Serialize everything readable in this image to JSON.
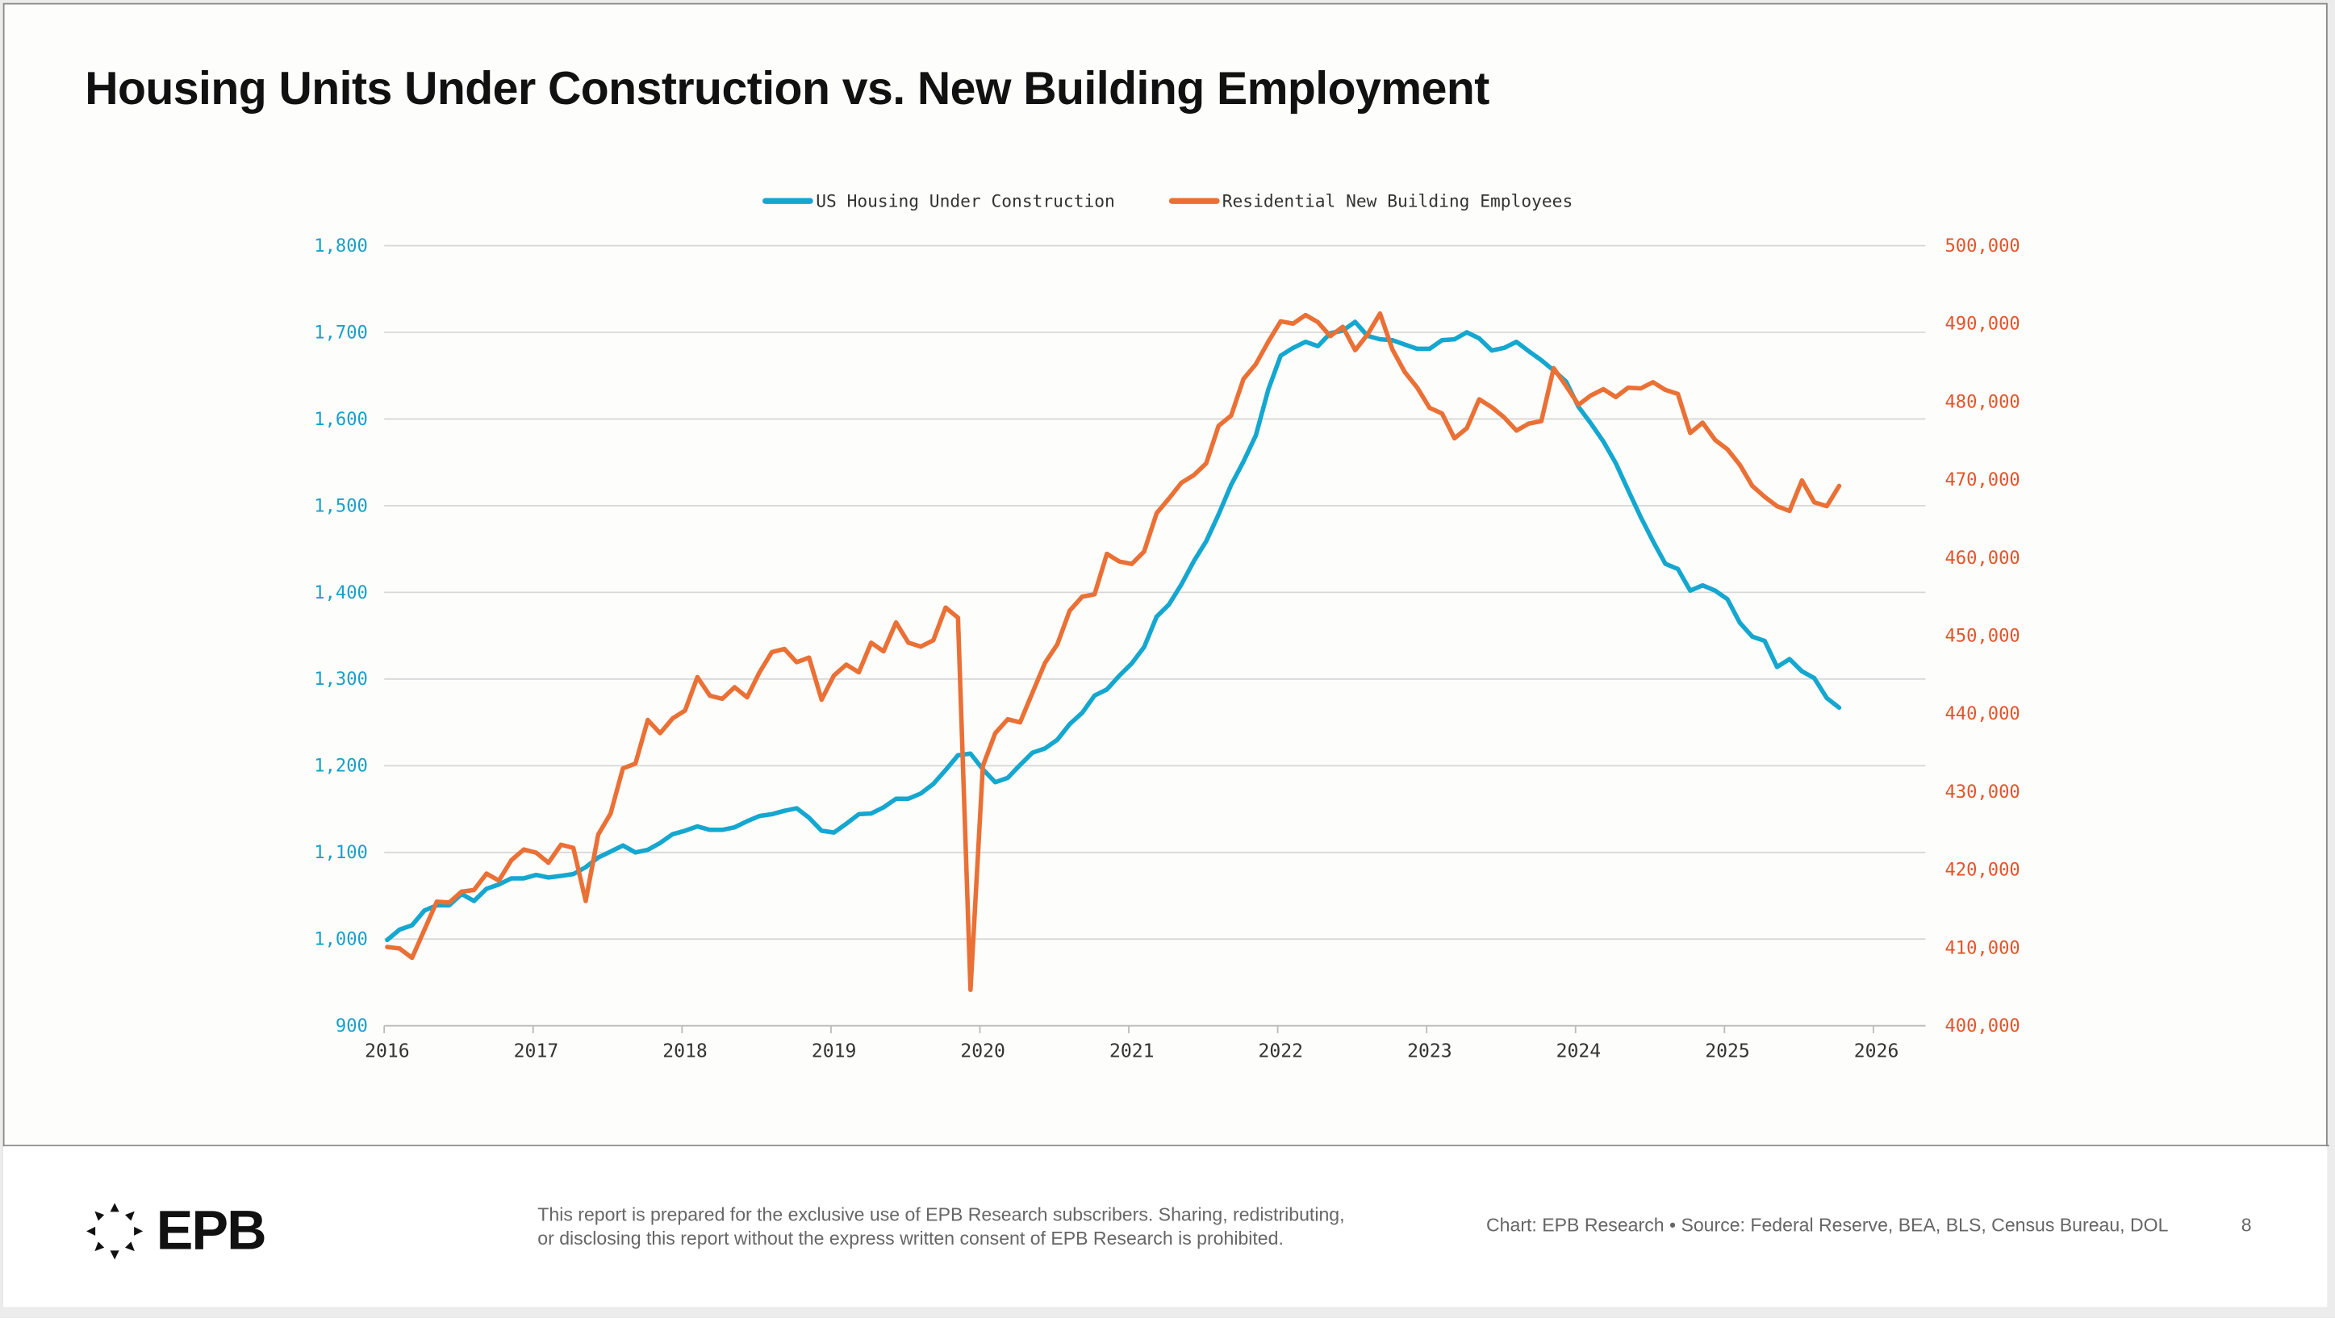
{
  "title": "Housing Units Under Construction vs. New Building Employment",
  "colors": {
    "blue": "#14a7cf",
    "orange": "#ea7035",
    "left_axis": "#1a9fca",
    "right_axis": "#e5532a"
  },
  "footer": {
    "logo_text": "EPB",
    "disclaimer_line1": "This report is prepared for the exclusive use of EPB Research subscribers. Sharing, redistributing,",
    "disclaimer_line2": "or disclosing this report without the express written consent of EPB Research is prohibited.",
    "source": "Chart: EPB Research  •  Source: Federal Reserve, BEA, BLS, Census Bureau, DOL",
    "page_number": "8"
  },
  "chart_data": {
    "type": "line",
    "title": "Housing Units Under Construction vs. New Building Employment",
    "x_start": "2016-01",
    "frequency": "monthly",
    "x_ticks": [
      "2016",
      "2017",
      "2018",
      "2019",
      "2020",
      "2021",
      "2022",
      "2023",
      "2024",
      "2025",
      "2026"
    ],
    "xlim": [
      2016,
      2026
    ],
    "y_left": {
      "range": [
        900,
        1800
      ],
      "ticks": [
        "1,800",
        "1,700",
        "1,600",
        "1,500",
        "1,400",
        "1,300",
        "1,200",
        "1,100",
        "1,000",
        "900"
      ]
    },
    "y_right": {
      "range": [
        400000,
        500000
      ],
      "ticks": [
        "500,000",
        "490,000",
        "480,000",
        "470,000",
        "460,000",
        "450,000",
        "440,000",
        "430,000",
        "420,000",
        "410,000",
        "400,000"
      ]
    },
    "grid": true,
    "legend_position": "top-center",
    "series": [
      {
        "name": "US Housing Under Construction",
        "axis": "left",
        "color": "#14a7cf",
        "values": [
          999,
          1011,
          1016,
          1033,
          1039,
          1039,
          1052,
          1044,
          1058,
          1063,
          1070,
          1070,
          1074,
          1071,
          1073,
          1075,
          1083,
          1094,
          1101,
          1108,
          1100,
          1103,
          1111,
          1121,
          1125,
          1130,
          1126,
          1126,
          1129,
          1136,
          1142,
          1144,
          1148,
          1151,
          1140,
          1125,
          1123,
          1133,
          1144,
          1145,
          1152,
          1162,
          1162,
          1168,
          1179,
          1195,
          1212,
          1214,
          1196,
          1181,
          1186,
          1201,
          1215,
          1220,
          1230,
          1248,
          1261,
          1281,
          1288,
          1304,
          1318,
          1337,
          1372,
          1386,
          1409,
          1436,
          1459,
          1490,
          1524,
          1551,
          1581,
          1634,
          1673,
          1682,
          1689,
          1684,
          1699,
          1702,
          1712,
          1696,
          1692,
          1691,
          1686,
          1681,
          1681,
          1691,
          1692,
          1700,
          1693,
          1679,
          1682,
          1689,
          1678,
          1668,
          1656,
          1643,
          1614,
          1595,
          1574,
          1549,
          1518,
          1487,
          1459,
          1433,
          1427,
          1402,
          1408,
          1402,
          1392,
          1365,
          1349,
          1344,
          1314,
          1323,
          1309,
          1301,
          1278,
          1267
        ]
      },
      {
        "name": "Residential New Building Employees",
        "axis": "right",
        "color": "#ea7035",
        "values": [
          410100,
          409900,
          408700,
          412300,
          415900,
          415800,
          417200,
          417400,
          419500,
          418600,
          421200,
          422600,
          422200,
          420900,
          423200,
          422800,
          416000,
          424500,
          427200,
          433000,
          433600,
          439200,
          437500,
          439400,
          440400,
          444700,
          442300,
          441900,
          443400,
          442100,
          445300,
          447900,
          448300,
          446600,
          447200,
          441800,
          444900,
          446300,
          445300,
          449100,
          448000,
          451700,
          449100,
          448600,
          449400,
          453600,
          452300,
          404600,
          433300,
          437500,
          439300,
          438900,
          442700,
          446500,
          448900,
          453200,
          455000,
          455300,
          460500,
          459500,
          459200,
          460800,
          465700,
          467600,
          469600,
          470600,
          472100,
          476900,
          478200,
          482900,
          484800,
          487700,
          490300,
          490000,
          491100,
          490200,
          488400,
          489600,
          486600,
          488600,
          491300,
          486700,
          483800,
          481800,
          479200,
          478500,
          475300,
          476600,
          480300,
          479300,
          478000,
          476300,
          477200,
          477500,
          484300,
          482000,
          479600,
          480800,
          481600,
          480600,
          481800,
          481700,
          482500,
          481500,
          481000,
          476000,
          477300,
          475100,
          473900,
          471900,
          469200,
          467800,
          466600,
          466000,
          469900,
          467100,
          466600,
          469200
        ]
      }
    ]
  }
}
